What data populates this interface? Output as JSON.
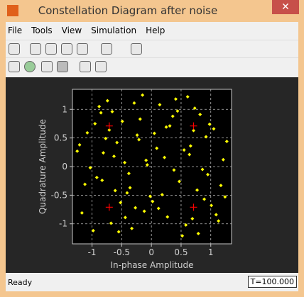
{
  "window": {
    "title": "Constellation Diagram after noise",
    "menu": [
      "File",
      "Tools",
      "View",
      "Simulation",
      "Help"
    ],
    "status": {
      "left": "Ready",
      "right": "T=100.000"
    }
  },
  "chart_data": {
    "type": "scatter",
    "x_label": "In-phase Amplitude",
    "y_label": "Quadrature Amplitude",
    "xlim": [
      -1.33,
      1.35
    ],
    "ylim": [
      -1.35,
      1.35
    ],
    "xticks": [
      -1,
      -0.5,
      0,
      0.5,
      1
    ],
    "yticks": [
      -1,
      -0.5,
      0,
      0.5,
      1
    ],
    "grid": true,
    "background": "#000000",
    "series": [
      {
        "color": "#ffff00",
        "marker": "diamond",
        "x": [
          0.12,
          -0.85,
          0.64,
          -0.33,
          1.05,
          -1.12,
          0.41,
          -0.58,
          0.89,
          -0.07,
          0.27,
          -0.95,
          0.73,
          -0.41,
          1.21,
          -0.68,
          0.05,
          -1.25,
          0.52,
          -0.19,
          0.95,
          -0.77,
          0.31,
          -0.52,
          1.13,
          -0.29,
          0.66,
          -1.03,
          0.18,
          -0.63,
          0.82,
          -0.12,
          0.47,
          -0.88,
          1.27,
          -0.36,
          0.58,
          -0.71,
          0.09,
          -1.17,
          0.77,
          -0.45,
          0.36,
          -0.92,
          1.01,
          -0.24,
          0.61,
          -0.55,
          0.22,
          -1.08,
          0.86,
          -0.02,
          0.44,
          -0.81,
          1.17,
          -0.49,
          0.69,
          -0.15,
          0.02,
          -0.98,
          0.92,
          -0.38,
          0.25,
          -0.66,
          1.09,
          -0.83,
          0.55,
          -0.27,
          0.79,
          -1.21,
          0.14,
          -0.61,
          0.98,
          -0.09,
          0.38,
          -0.74,
          1.24,
          -0.44,
          0.71,
          -0.21
        ],
        "values": [
          -0.73,
          0.94,
          0.21,
          -1.08,
          0.66,
          -0.31,
          1.18,
          0.42,
          -0.57,
          0.03,
          -0.88,
          0.75,
          1.02,
          -0.46,
          0.12,
          -0.99,
          0.58,
          0.27,
          -1.21,
          0.83,
          -0.14,
          0.49,
          0.71,
          -0.63,
          -0.95,
          1.11,
          0.36,
          -0.02,
          -0.49,
          0.18,
          0.91,
          -0.78,
          -0.26,
          1.05,
          0.44,
          -0.37,
          -1.02,
          0.64,
          0.32,
          -0.81,
          -0.41,
          0.07,
          0.88,
          -0.19,
          -0.68,
          0.55,
          1.22,
          -1.14,
          0.16,
          0.59,
          -0.05,
          -0.52,
          0.97,
          0.24,
          -0.33,
          0.79,
          -0.91,
          1.25,
          -0.61,
          -1.12,
          0.52,
          -0.12,
          0.69,
          0.96,
          -0.84,
          -0.24,
          0.29,
          -0.72,
          -1.17,
          0.38,
          1.08,
          -0.42,
          0.74,
          0.11,
          -0.06,
          1.15,
          -0.53,
          -0.89,
          0.63,
          0.47
        ]
      },
      {
        "color": "#ff0000",
        "marker": "plus",
        "x": [
          -0.71,
          0.71,
          -0.71,
          0.71
        ],
        "values": [
          0.71,
          0.71,
          -0.71,
          -0.71
        ]
      }
    ]
  }
}
